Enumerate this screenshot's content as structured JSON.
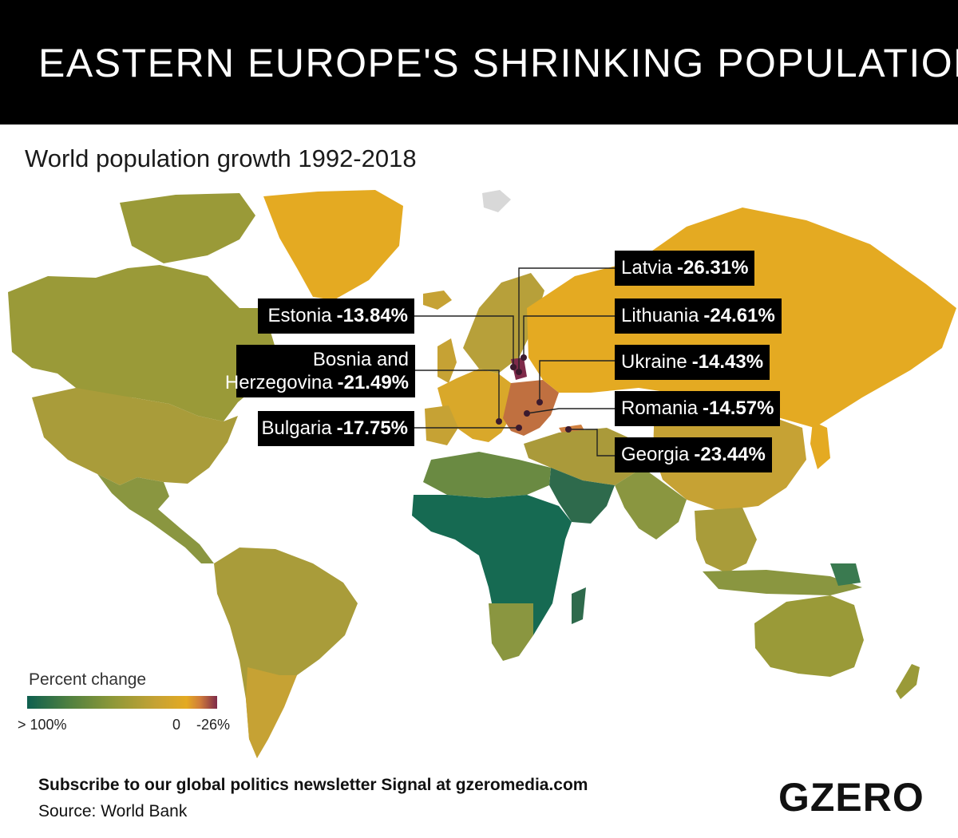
{
  "header": {
    "title": "EASTERN EUROPE'S SHRINKING POPULATION"
  },
  "subtitle": "World population growth 1992-2018",
  "callouts": [
    {
      "country": "Latvia",
      "value": "-26.31%"
    },
    {
      "country": "Estonia",
      "value": "-13.84%"
    },
    {
      "country": "Lithuania",
      "value": "-24.61%"
    },
    {
      "country_line1": "Bosnia and",
      "country_line2": "Herzegovina",
      "value": "-21.49%"
    },
    {
      "country": "Ukraine",
      "value": "-14.43%"
    },
    {
      "country": "Romania",
      "value": "-14.57%"
    },
    {
      "country": "Bulgaria",
      "value": "-17.75%"
    },
    {
      "country": "Georgia",
      "value": "-23.44%"
    }
  ],
  "legend": {
    "title": "Percent change",
    "labels": [
      "> 100%",
      "0",
      "-26%"
    ],
    "colors": [
      "#0e5f4f",
      "#4f8040",
      "#8e9838",
      "#c6a234",
      "#e4aa22",
      "#d07c3a",
      "#7e2a4a"
    ]
  },
  "footer": {
    "cta": "Subscribe to our global politics newsletter Signal at gzeromedia.com",
    "source": "Source: World Bank",
    "brand": "GZERO"
  },
  "palette": {
    "high_growth": "#0e5f4f",
    "moderate_growth": "#4f8040",
    "low_growth": "#8e9838",
    "slow_growth": "#c6a234",
    "near_zero": "#e4aa22",
    "decline": "#c07040",
    "strong_decline": "#7e2a4a",
    "no_data": "#d8d8d8"
  }
}
